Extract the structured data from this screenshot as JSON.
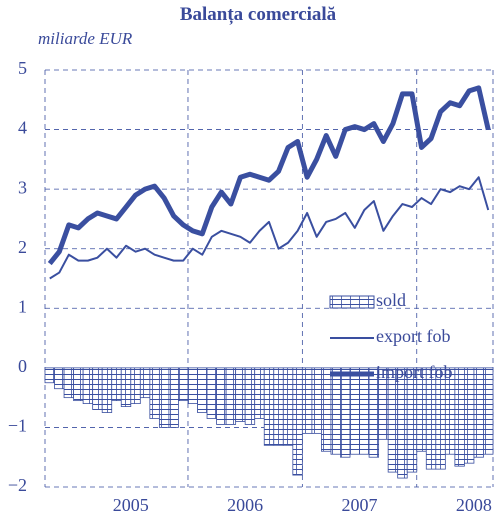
{
  "chart_data": {
    "type": "line",
    "title": "Balanța comercială",
    "y_label": "miliarde EUR",
    "x_labels": [
      "2005",
      "2006",
      "2007",
      "2008"
    ],
    "ylim": [
      -2,
      5
    ],
    "yticks": [
      -2,
      -1,
      0,
      1,
      2,
      3,
      4,
      5
    ],
    "yticks_labels": [
      "−2",
      "−1",
      "0",
      "1",
      "2",
      "3",
      "4",
      "5"
    ],
    "grid": true,
    "legend": "right",
    "series": [
      {
        "name": "sold",
        "type": "bar",
        "color": "#3a4fa0",
        "values": [
          -0.25,
          -0.35,
          -0.5,
          -0.55,
          -0.6,
          -0.7,
          -0.75,
          -0.55,
          -0.65,
          -0.6,
          -0.5,
          -0.85,
          -1.0,
          -1.0,
          -0.55,
          -0.6,
          -0.75,
          -0.85,
          -0.95,
          -0.95,
          -0.9,
          -0.95,
          -0.85,
          -1.3,
          -1.3,
          -1.3,
          -1.8,
          -1.1,
          -1.1,
          -1.4,
          -1.45,
          -1.5,
          -1.45,
          -1.45,
          -1.5,
          -1.2,
          -1.75,
          -1.85,
          -1.75,
          -1.4,
          -1.7,
          -1.7,
          -1.45,
          -1.65,
          -1.6,
          -1.5,
          -1.45
        ]
      },
      {
        "name": "export fob",
        "type": "line",
        "color": "#3a4fa0",
        "width": 2,
        "values": [
          1.5,
          1.6,
          1.9,
          1.8,
          1.8,
          1.85,
          2.0,
          1.85,
          2.05,
          1.95,
          2.0,
          1.9,
          1.85,
          1.8,
          1.8,
          2.0,
          1.9,
          2.2,
          2.3,
          2.25,
          2.2,
          2.1,
          2.3,
          2.45,
          2.0,
          2.1,
          2.3,
          2.6,
          2.2,
          2.45,
          2.5,
          2.6,
          2.35,
          2.65,
          2.8,
          2.3,
          2.55,
          2.75,
          2.7,
          2.85,
          2.75,
          3.0,
          2.95,
          3.05,
          3.0,
          3.2,
          2.65
        ]
      },
      {
        "name": "import fob",
        "type": "line",
        "color": "#3a4fa0",
        "width": 5,
        "values": [
          1.75,
          1.95,
          2.4,
          2.35,
          2.5,
          2.6,
          2.55,
          2.5,
          2.7,
          2.9,
          3.0,
          3.05,
          2.85,
          2.55,
          2.4,
          2.3,
          2.25,
          2.7,
          2.95,
          2.75,
          3.2,
          3.25,
          3.2,
          3.15,
          3.3,
          3.7,
          3.8,
          3.2,
          3.5,
          3.9,
          3.55,
          4.0,
          4.05,
          4.0,
          4.1,
          3.8,
          4.1,
          4.6,
          4.6,
          3.7,
          3.85,
          4.3,
          4.45,
          4.4,
          4.65,
          4.7,
          4.0
        ]
      }
    ]
  }
}
